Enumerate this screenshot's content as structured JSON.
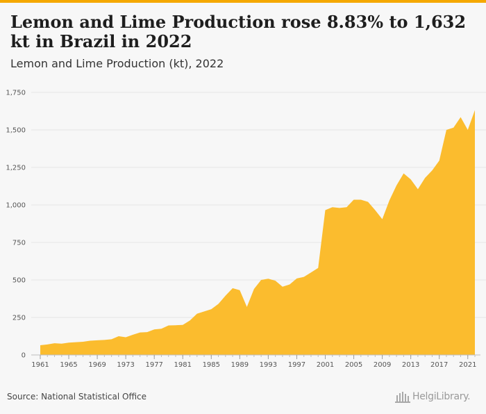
{
  "header": {
    "title": "Lemon and Lime Production rose 8.83% to 1,632 kt in Brazil in 2022",
    "subtitle": "Lemon and Lime Production (kt), 2022"
  },
  "footer": {
    "source": "Source: National Statistical Office",
    "logo_text": "HelgiLibrary."
  },
  "colors": {
    "accent": "#f5a800",
    "area_fill": "#fbbc2e",
    "background": "#f7f7f7",
    "grid": "#e4e4e4"
  },
  "chart_data": {
    "type": "area",
    "title": "Lemon and Lime Production (kt), 2022",
    "xlabel": "",
    "ylabel": "",
    "ylim": [
      0,
      1750
    ],
    "yticks": [
      0,
      250,
      500,
      750,
      1000,
      1250,
      1500,
      1750
    ],
    "ytick_labels": [
      "0",
      "250",
      "500",
      "750",
      "1,000",
      "1,250",
      "1,500",
      "1,750"
    ],
    "xticks": [
      1961,
      1965,
      1969,
      1973,
      1977,
      1981,
      1985,
      1989,
      1993,
      1997,
      2001,
      2005,
      2009,
      2013,
      2017,
      2021
    ],
    "grid": true,
    "x": [
      1961,
      1962,
      1963,
      1964,
      1965,
      1966,
      1967,
      1968,
      1969,
      1970,
      1971,
      1972,
      1973,
      1974,
      1975,
      1976,
      1977,
      1978,
      1979,
      1980,
      1981,
      1982,
      1983,
      1984,
      1985,
      1986,
      1987,
      1988,
      1989,
      1990,
      1991,
      1992,
      1993,
      1994,
      1995,
      1996,
      1997,
      1998,
      1999,
      2000,
      2001,
      2002,
      2003,
      2004,
      2005,
      2006,
      2007,
      2008,
      2009,
      2010,
      2011,
      2012,
      2013,
      2014,
      2015,
      2016,
      2017,
      2018,
      2019,
      2020,
      2021,
      2022
    ],
    "values": [
      65,
      70,
      78,
      75,
      82,
      85,
      88,
      95,
      98,
      100,
      105,
      125,
      118,
      135,
      150,
      152,
      170,
      175,
      197,
      198,
      200,
      230,
      275,
      290,
      305,
      340,
      395,
      445,
      432,
      320,
      440,
      500,
      508,
      495,
      455,
      470,
      510,
      520,
      550,
      580,
      965,
      985,
      980,
      985,
      1035,
      1035,
      1020,
      965,
      905,
      1030,
      1130,
      1210,
      1170,
      1105,
      1180,
      1230,
      1295,
      1500,
      1515,
      1585,
      1500,
      1632
    ]
  }
}
